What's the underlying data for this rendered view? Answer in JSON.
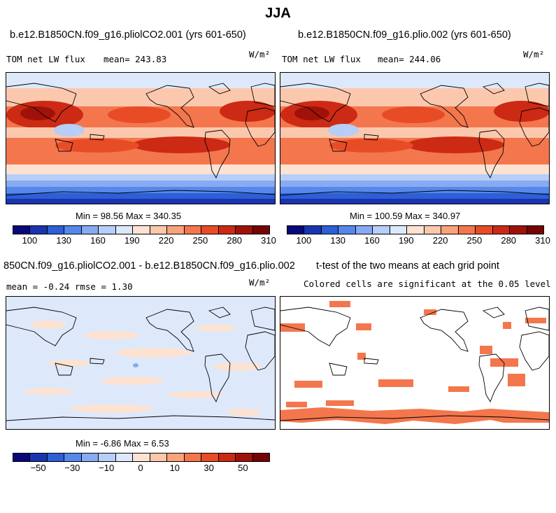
{
  "page": {
    "season": "JJA"
  },
  "panels": {
    "p1": {
      "title": "b.e12.B1850CN.f09_g16.pliolCO2.001 (yrs 601-650)",
      "left_label": "TOM net LW flux",
      "mean_label": "mean= 243.83",
      "units": "W/m²",
      "minmax": "Min =  98.56 Max = 340.35"
    },
    "p2": {
      "title": "b.e12.B1850CN.f09_g16.plio.002 (yrs 601-650)",
      "left_label": "TOM net LW flux",
      "mean_label": "mean= 244.06",
      "units": "W/m²",
      "minmax": "Min = 100.59 Max = 340.97"
    },
    "p3": {
      "title": "850CN.f09_g16.pliolCO2.001 - b.e12.B1850CN.f09_g16.plio.002",
      "left_label": "mean =  -0.24    rmse =   1.30",
      "units": "W/m²",
      "minmax": "Min =  -6.86 Max =   6.53"
    },
    "p4": {
      "title": "t-test of the two means at each grid point",
      "subtitle": "Colored cells are significant at the 0.05 level"
    }
  },
  "colorbars": {
    "abs": {
      "colors": [
        "#08087a",
        "#1a34b0",
        "#2d5fd6",
        "#5588ea",
        "#88aaf2",
        "#b6cef8",
        "#dde9fb",
        "#fde2d2",
        "#fcc8ad",
        "#f9a27b",
        "#f4764d",
        "#e84c26",
        "#cc2a14",
        "#a01209",
        "#750404"
      ],
      "tick_labels": [
        "100",
        "130",
        "160",
        "190",
        "220",
        "250",
        "280",
        "310"
      ]
    },
    "diff": {
      "colors": [
        "#08087a",
        "#1a34b0",
        "#2d5fd6",
        "#5588ea",
        "#88aaf2",
        "#b6cef8",
        "#dde9fb",
        "#fde2d2",
        "#fcc8ad",
        "#f9a27b",
        "#f4764d",
        "#e84c26",
        "#cc2a14",
        "#a01209",
        "#750404"
      ],
      "tick_labels": [
        "−50",
        "−30",
        "−10",
        "0",
        "10",
        "30",
        "50"
      ]
    }
  }
}
